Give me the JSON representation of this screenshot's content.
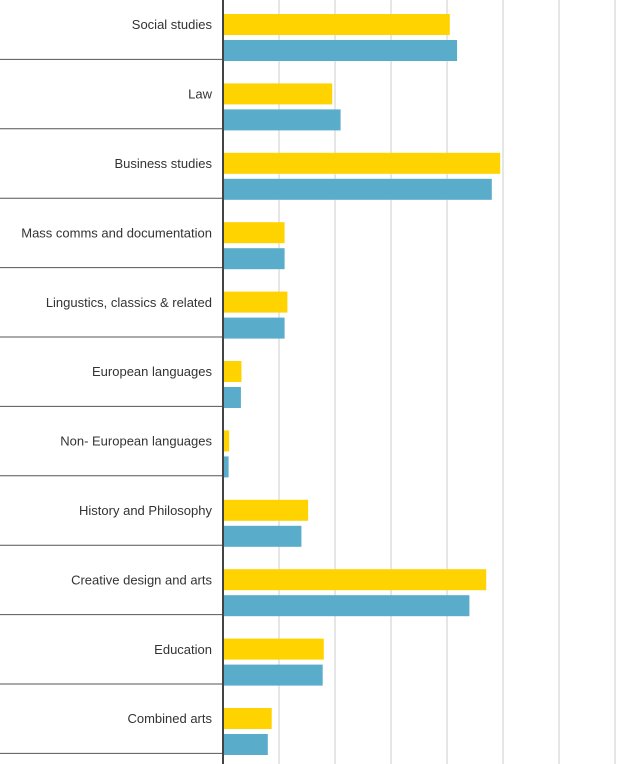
{
  "chart_data": {
    "type": "bar",
    "orientation": "horizontal",
    "categories": [
      "Social studies",
      "Law",
      "Business studies",
      "Mass comms and documentation",
      "Lingustics, classics & related",
      "European languages",
      "Non- European languages",
      "History and Philosophy",
      "Creative design and arts",
      "Education",
      "Combined arts"
    ],
    "series": [
      {
        "color": "#FFD300",
        "values": [
          40.5,
          19.5,
          49.5,
          11,
          11.5,
          3.3,
          1.1,
          15.2,
          47,
          18,
          8.7
        ]
      },
      {
        "color": "#5AACCB",
        "values": [
          41.8,
          21,
          48,
          11,
          11,
          3.2,
          1,
          14,
          44,
          17.8,
          8
        ]
      }
    ],
    "xlim": [
      0,
      70
    ],
    "x_gridlines": [
      0,
      10,
      20,
      30,
      40,
      50,
      60,
      70
    ],
    "grid": true,
    "legend": "none"
  }
}
